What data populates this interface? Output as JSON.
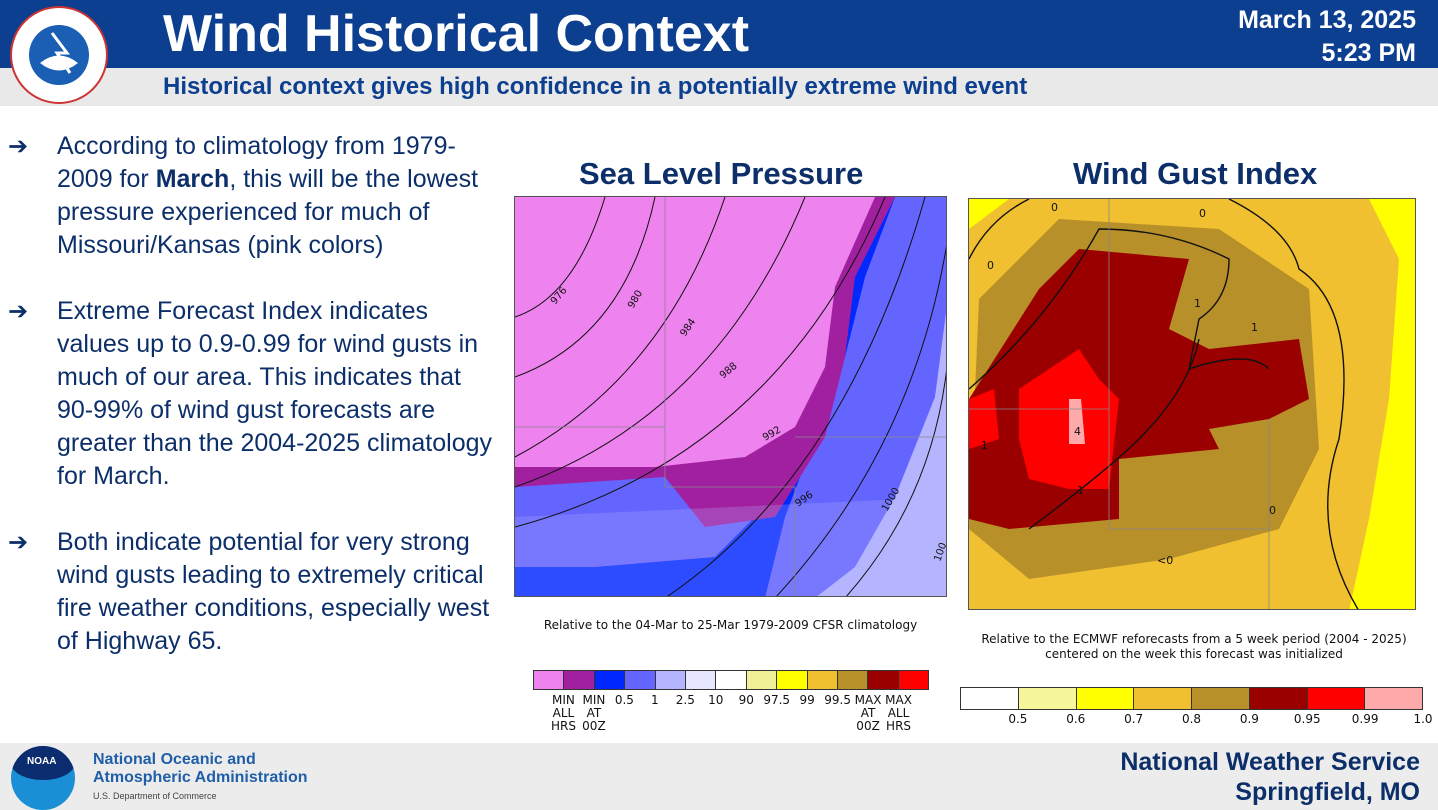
{
  "header": {
    "title": "Wind Historical Context",
    "date": "March 13, 2025",
    "time": "5:23 PM",
    "subtitle": "Historical context gives high confidence in a potentially extreme wind event",
    "logo_text": "NATIONAL WEATHER SERVICE"
  },
  "bullets": [
    {
      "pre": "According to climatology from 1979-2009 for ",
      "bold": "March",
      "post": ", this will be the lowest pressure experienced for much of Missouri/Kansas (pink colors)"
    },
    {
      "pre": "Extreme Forecast Index indicates values up to 0.9-0.99 for wind gusts in much of our area. This indicates that 90-99% of wind gust forecasts are greater than the 2004-2025 climatology for March.",
      "bold": "",
      "post": ""
    },
    {
      "pre": "Both indicate potential for very strong wind gusts leading to extremely critical fire weather conditions, especially west of Highway 65.",
      "bold": "",
      "post": ""
    }
  ],
  "slp": {
    "title": "Sea Level Pressure",
    "caption": "Relative to the 04-Mar to 25-Mar 1979-2009 CFSR climatology",
    "contours": [
      "976",
      "980",
      "984",
      "988",
      "992",
      "996",
      "1000",
      "100"
    ],
    "colors": [
      "#ee82ee",
      "#a020a0",
      "#0028ff",
      "#6464ff",
      "#b4b4ff",
      "#e6e6ff",
      "#ffffff",
      "#f0f096",
      "#ffff00",
      "#f0c030",
      "#b8902a",
      "#9a0000",
      "#ff0000"
    ],
    "ticks": [
      "MIN\nALL\nHRS",
      "MIN\nAT\n00Z",
      "0.5",
      "1",
      "2.5",
      "10",
      "90",
      "97.5",
      "99",
      "99.5",
      "MAX\nAT\n00Z",
      "MAX\nALL\nHRS"
    ]
  },
  "wgi": {
    "title": "Wind Gust Index",
    "caption": "Relative to the ECMWF reforecasts from a 5 week period (2004 - 2025)\ncentered on the week this forecast was initialized",
    "contours": [
      "0",
      "0",
      "0",
      "1",
      "1",
      "1",
      "4",
      "1",
      "0",
      "<0"
    ],
    "colors": [
      "#ffffff",
      "#f5f59a",
      "#ffff00",
      "#f0c030",
      "#b8902a",
      "#9a0000",
      "#ff0000",
      "#ffaaaa"
    ],
    "ticks": [
      "0.5",
      "0.6",
      "0.7",
      "0.8",
      "0.9",
      "0.95",
      "0.99",
      "1.0"
    ]
  },
  "footer": {
    "org_line1": "National Oceanic and",
    "org_line2": "Atmospheric Administration",
    "dept": "U.S. Department of Commerce",
    "noaa": "NOAA",
    "office_line1": "National Weather Service",
    "office_line2": "Springfield, MO"
  }
}
